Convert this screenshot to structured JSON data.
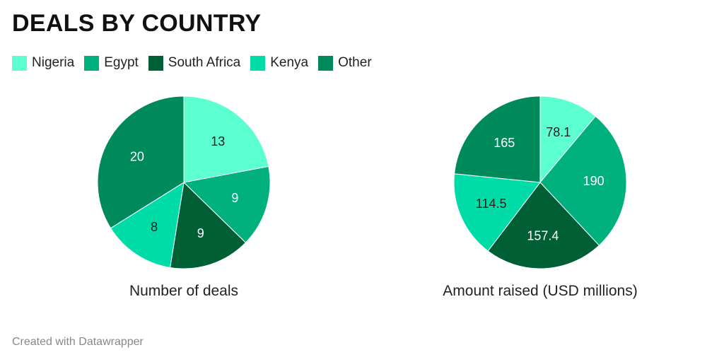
{
  "title": "DEALS BY COUNTRY",
  "footer": "Created with Datawrapper",
  "colors": {
    "Nigeria": "#5cffd0",
    "Egypt": "#00b07d",
    "South Africa": "#005f35",
    "Kenya": "#00dca8",
    "Other": "#008a5b"
  },
  "legend": [
    "Nigeria",
    "Egypt",
    "South Africa",
    "Kenya",
    "Other"
  ],
  "chart_data": [
    {
      "type": "pie",
      "title": "Number of deals",
      "categories": [
        "Nigeria",
        "Egypt",
        "South Africa",
        "Kenya",
        "Other"
      ],
      "values": [
        13,
        9,
        9,
        8,
        20
      ],
      "labels": [
        "13",
        "9",
        "9",
        "8",
        "20"
      ]
    },
    {
      "type": "pie",
      "title": "Amount raised (USD millions)",
      "categories": [
        "Nigeria",
        "Egypt",
        "South Africa",
        "Kenya",
        "Other"
      ],
      "values": [
        78.1,
        190,
        157.4,
        114.5,
        165
      ],
      "labels": [
        "78.1",
        "190",
        "157.4",
        "114.5",
        "165"
      ]
    }
  ]
}
